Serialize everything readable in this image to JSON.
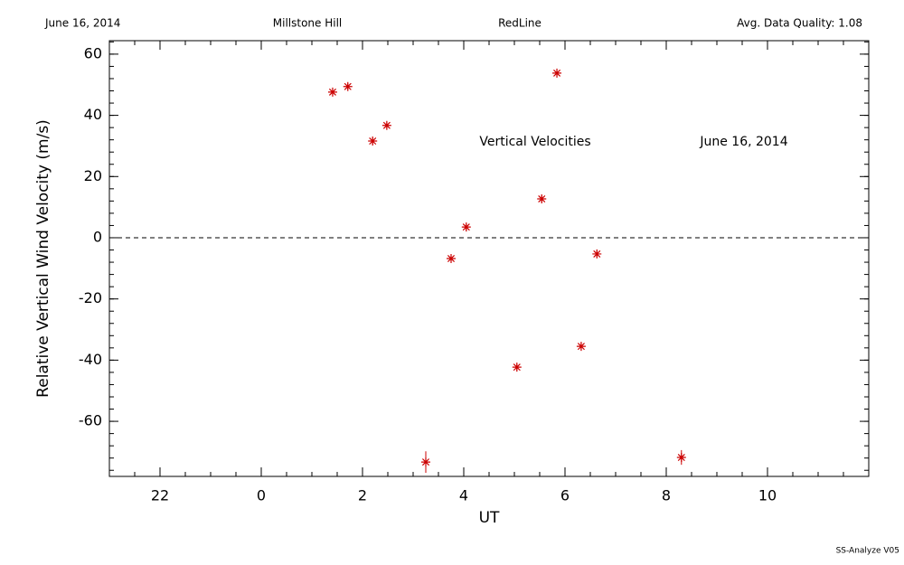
{
  "header": {
    "date": "June 16, 2014",
    "site": "Millstone Hill",
    "instrument": "RedLine",
    "quality": "Avg. Data Quality: 1.08"
  },
  "footer": "SS-Analyze V05",
  "chart_data": {
    "type": "scatter",
    "x_label": "UT",
    "y_label": "Relative Vertical Wind Velocity (m/s)",
    "annotations": [
      "Vertical Velocities",
      "June 16, 2014"
    ],
    "x": [
      1.41,
      1.71,
      2.2,
      2.48,
      3.25,
      3.75,
      4.05,
      5.05,
      5.54,
      5.84,
      6.32,
      6.63,
      8.3
    ],
    "values": [
      47.6,
      49.4,
      31.6,
      36.7,
      -73.3,
      -6.8,
      3.5,
      -42.3,
      12.7,
      53.8,
      -35.5,
      -5.3,
      -71.8
    ],
    "errors": [
      1,
      1,
      1,
      1,
      3.5,
      1,
      1,
      1,
      1,
      1,
      1,
      1,
      2.4
    ],
    "color": "#cc0000",
    "xlim": [
      -3,
      12
    ],
    "ylim": [
      -78,
      64.4
    ],
    "xticks": [
      {
        "value": -2,
        "label": "22"
      },
      0,
      2,
      4,
      6,
      8,
      10
    ],
    "yticks": [
      -60,
      -40,
      -20,
      0,
      20,
      40,
      60
    ],
    "x_minor_step": 0.5,
    "y_minor_step": 4,
    "reference_line": 0
  }
}
